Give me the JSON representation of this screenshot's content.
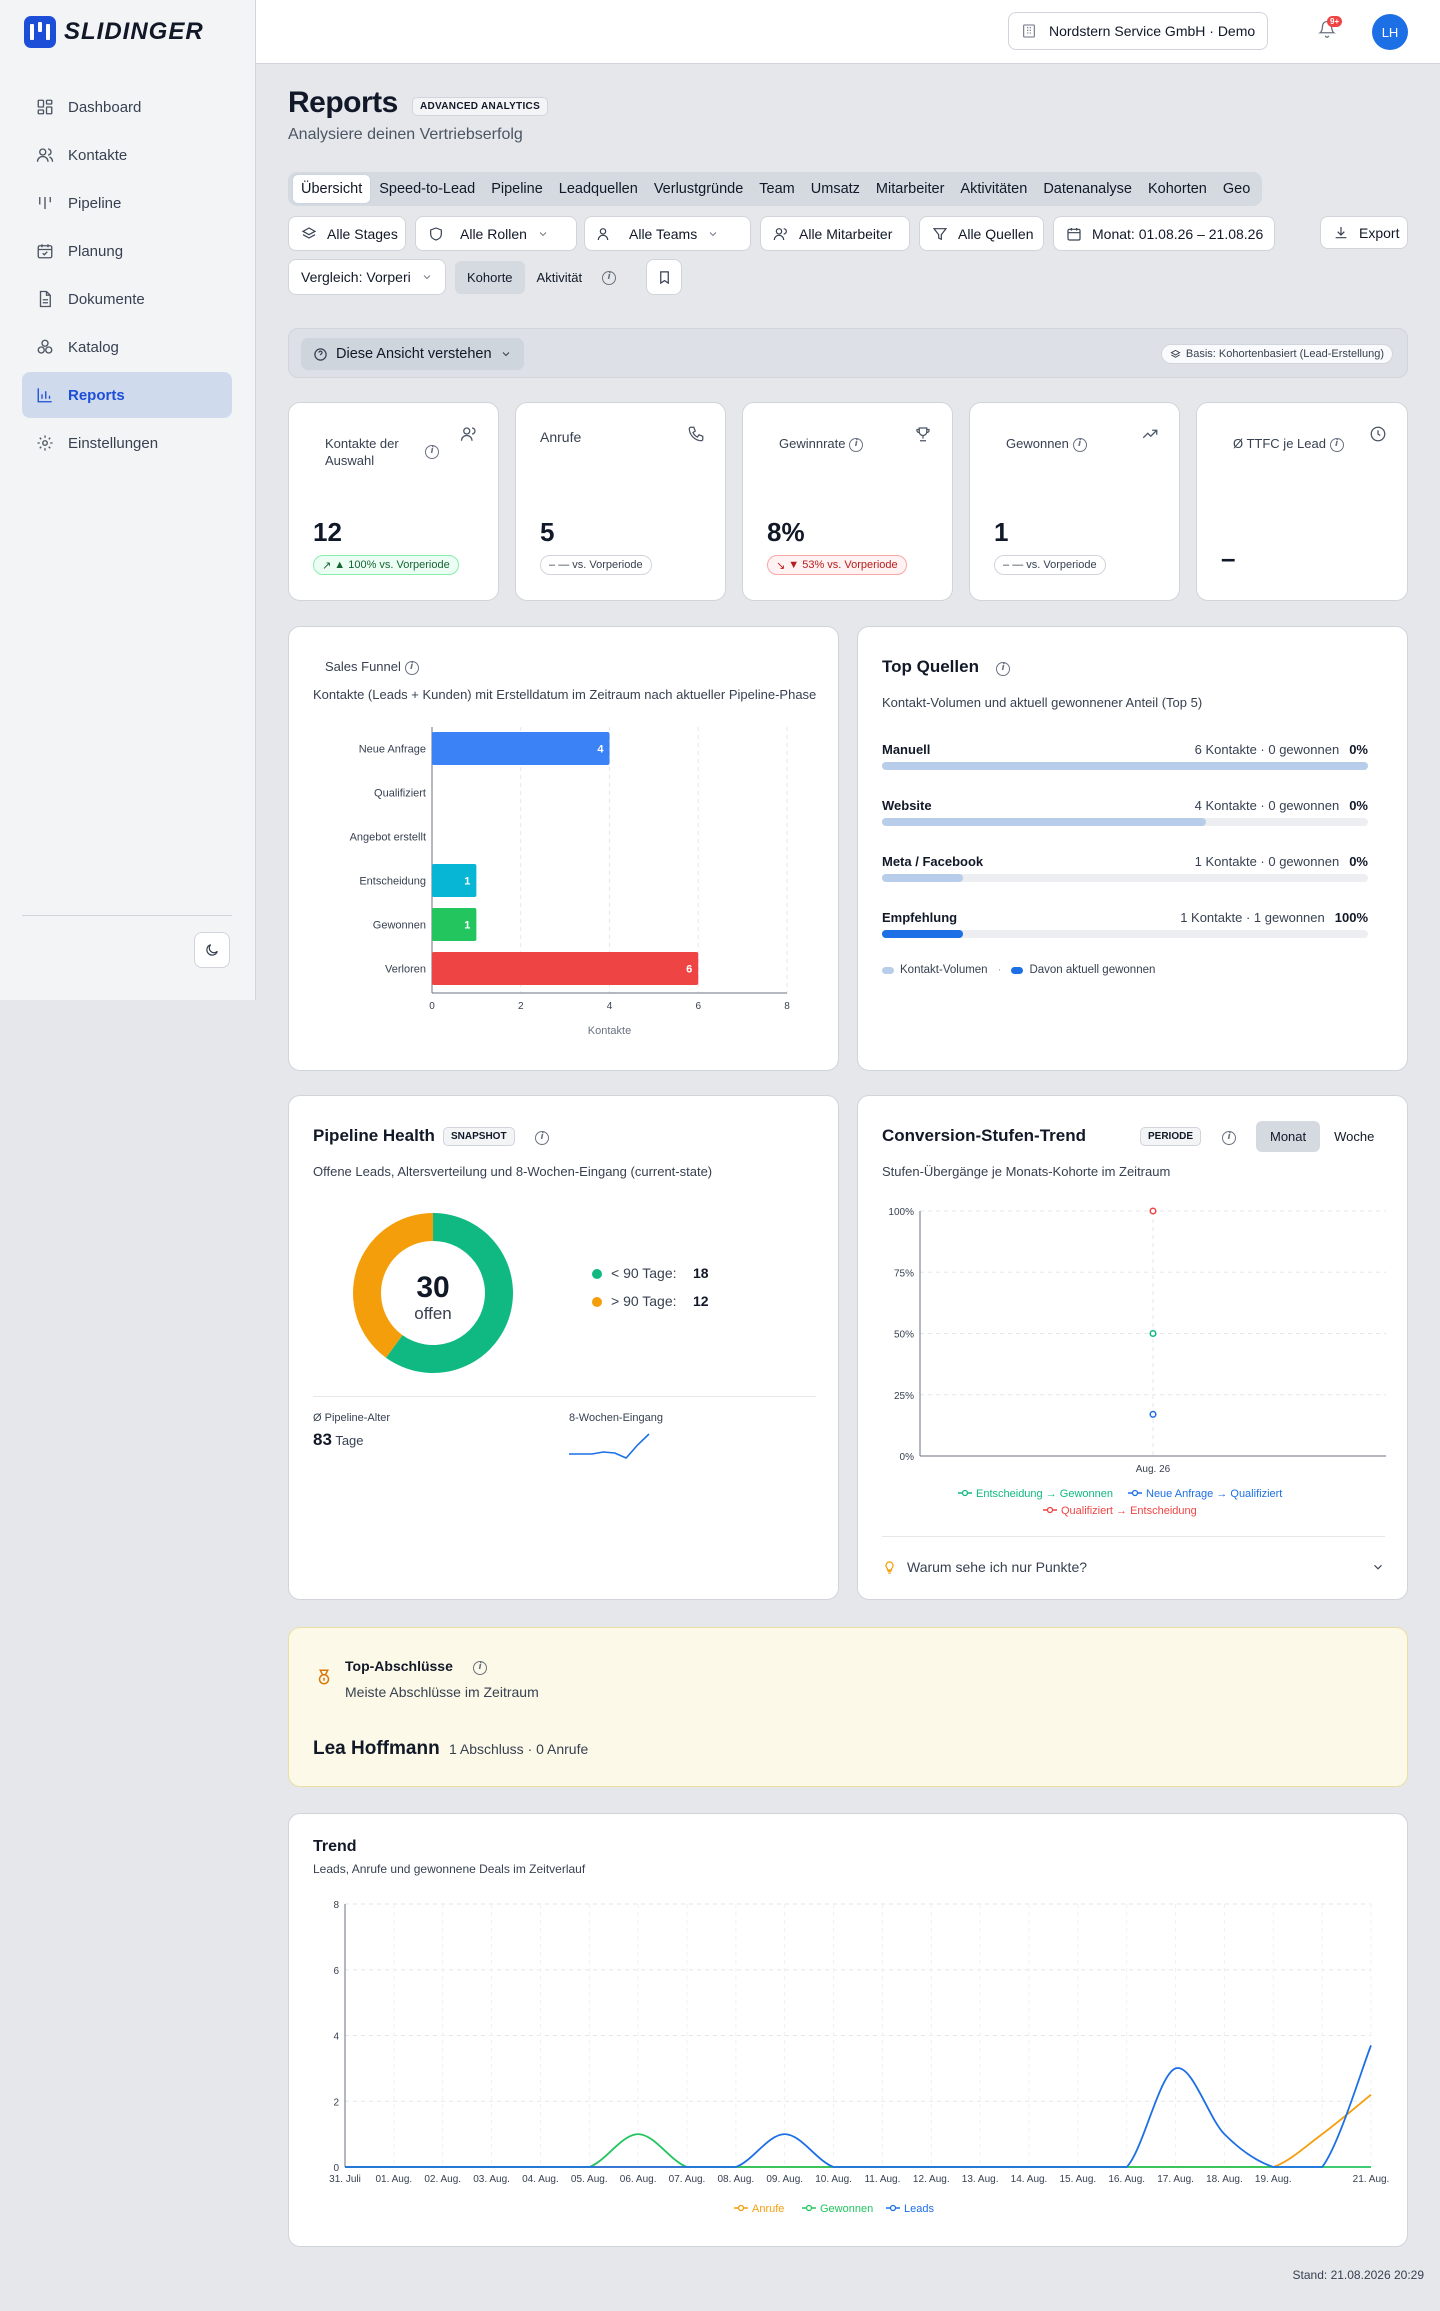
{
  "brand": {
    "name": "SLIDINGER"
  },
  "sidebar": {
    "items": [
      {
        "label": "Dashboard",
        "icon": "grid-icon",
        "active": false
      },
      {
        "label": "Kontakte",
        "icon": "users-icon",
        "active": false
      },
      {
        "label": "Pipeline",
        "icon": "columns-icon",
        "active": false
      },
      {
        "label": "Planung",
        "icon": "calendar-icon",
        "active": false
      },
      {
        "label": "Dokumente",
        "icon": "document-icon",
        "active": false
      },
      {
        "label": "Katalog",
        "icon": "boxes-icon",
        "active": false
      },
      {
        "label": "Reports",
        "icon": "bar-chart-icon",
        "active": true
      },
      {
        "label": "Einstellungen",
        "icon": "gear-icon",
        "active": false
      }
    ]
  },
  "topbar": {
    "org": "Nordstern Service GmbH · Demo",
    "notifications": "9+",
    "user_initials": "LH"
  },
  "page": {
    "title": "Reports",
    "badge": "ADVANCED ANALYTICS",
    "subtitle": "Analysiere deinen Vertriebserfolg"
  },
  "tabs": [
    "Übersicht",
    "Speed-to-Lead",
    "Pipeline",
    "Leadquellen",
    "Verlustgründe",
    "Team",
    "Umsatz",
    "Mitarbeiter",
    "Aktivitäten",
    "Datenanalyse",
    "Kohorten",
    "Geo"
  ],
  "filters": {
    "stages": "Alle Stages",
    "roles": "Alle Rollen",
    "teams": "Alle Teams",
    "employees": "Alle Mitarbeiter",
    "sources": "Alle Quellen",
    "period": "Monat: 01.08.26 – 21.08.26",
    "export": "Export",
    "compare": "Vergleich: Vorperiode",
    "mode_cohort": "Kohorte",
    "mode_activity": "Aktivität"
  },
  "understand": {
    "button": "Diese Ansicht verstehen",
    "basis": "Basis: Kohortenbasiert (Lead-Erstellung)"
  },
  "kpis": [
    {
      "label": "Kontakte der Auswahl",
      "value": "12",
      "delta": "▲ 100% vs. Vorperiode",
      "trend": "up",
      "icon": "users-icon"
    },
    {
      "label": "Anrufe",
      "value": "5",
      "delta": "— vs. Vorperiode",
      "trend": "flat",
      "icon": "phone-icon"
    },
    {
      "label": "Gewinnrate",
      "value": "8%",
      "delta": "▼ 53% vs. Vorperiode",
      "trend": "down",
      "icon": "trophy-icon"
    },
    {
      "label": "Gewonnen",
      "value": "1",
      "delta": "— vs. Vorperiode",
      "trend": "flat",
      "icon": "trending-up-icon"
    },
    {
      "label": "Ø TTFC je Lead",
      "value": "–",
      "delta": "",
      "trend": "none",
      "icon": "clock-icon"
    }
  ],
  "funnel": {
    "title": "Sales Funnel",
    "subtitle": "Kontakte (Leads + Kunden) mit Erstelldatum im Zeitraum nach aktueller Pipeline-Phase",
    "chart_data": {
      "type": "bar",
      "orientation": "horizontal",
      "categories": [
        "Neue Anfrage",
        "Qualifiziert",
        "Angebot erstellt",
        "Entscheidung",
        "Gewonnen",
        "Verloren"
      ],
      "values": [
        4,
        0,
        0,
        1,
        1,
        6
      ],
      "colors": [
        "#3b82f6",
        "#3b82f6",
        "#3b82f6",
        "#06b6d4",
        "#22c55e",
        "#ef4444"
      ],
      "xlabel": "Kontakte",
      "xlim": [
        0,
        8
      ],
      "xticks": [
        0,
        2,
        4,
        6,
        8
      ]
    }
  },
  "sources": {
    "title": "Top Quellen",
    "subtitle": "Kontakt-Volumen und aktuell gewonnener Anteil (Top 5)",
    "rows": [
      {
        "name": "Manuell",
        "meta": "6 Kontakte · 0 gewonnen",
        "pct": "0%",
        "volume": 1.0,
        "won": 0.0
      },
      {
        "name": "Website",
        "meta": "4 Kontakte · 0 gewonnen",
        "pct": "0%",
        "volume": 0.667,
        "won": 0.0
      },
      {
        "name": "Meta / Facebook",
        "meta": "1 Kontakte · 0 gewonnen",
        "pct": "0%",
        "volume": 0.167,
        "won": 0.0
      },
      {
        "name": "Empfehlung",
        "meta": "1 Kontakte · 1 gewonnen",
        "pct": "100%",
        "volume": 0.167,
        "won": 0.167
      }
    ],
    "legend_volume": "Kontakt-Volumen",
    "legend_won": "Davon aktuell gewonnen",
    "colors": {
      "volume": "#b7cdea",
      "won": "#1d6fe6"
    }
  },
  "health": {
    "title": "Pipeline Health",
    "badge": "SNAPSHOT",
    "subtitle": "Offene Leads, Altersverteilung und 8-Wochen-Eingang (current-state)",
    "total": "30",
    "total_label": "offen",
    "chart_data": {
      "type": "pie",
      "donut": true,
      "segments": [
        {
          "label": "< 90 Tage:",
          "value": 18,
          "color": "#10b981"
        },
        {
          "label": "> 90 Tage:",
          "value": 12,
          "color": "#f59e0b"
        }
      ]
    },
    "age_label": "Ø Pipeline-Alter",
    "age_value": "83",
    "age_unit": "Tage",
    "intake_label": "8-Wochen-Eingang",
    "intake_data": [
      1,
      1,
      1,
      1.2,
      1.1,
      0.6,
      1.9,
      3
    ]
  },
  "conversion": {
    "title": "Conversion-Stufen-Trend",
    "badge": "PERIODE",
    "toggle": [
      "Monat",
      "Woche"
    ],
    "subtitle": "Stufen-Übergänge je Monats-Kohorte im Zeitraum",
    "chart_data": {
      "type": "scatter",
      "x": [
        "Aug. 26"
      ],
      "ylim": [
        0,
        100
      ],
      "yticks": [
        "0%",
        "25%",
        "50%",
        "75%",
        "100%"
      ],
      "series": [
        {
          "name": "Entscheidung → Gewonnen",
          "values": [
            50
          ],
          "color": "#10b981"
        },
        {
          "name": "Neue Anfrage → Qualifiziert",
          "values": [
            17
          ],
          "color": "#1d6fe6"
        },
        {
          "name": "Qualifiziert → Entscheidung",
          "values": [
            100
          ],
          "color": "#ef4444"
        }
      ]
    },
    "faq": "Warum sehe ich nur Punkte?"
  },
  "top_deals": {
    "title": "Top-Abschlüsse",
    "subtitle": "Meiste Abschlüsse im Zeitraum",
    "winner_name": "Lea Hoffmann",
    "winner_meta": "1 Abschluss · 0 Anrufe"
  },
  "trend": {
    "title": "Trend",
    "subtitle": "Leads, Anrufe und gewonnene Deals im Zeitverlauf",
    "chart_data": {
      "type": "line",
      "x": [
        "31. Juli",
        "01. Aug.",
        "02. Aug.",
        "03. Aug.",
        "04. Aug.",
        "05. Aug.",
        "06. Aug.",
        "07. Aug.",
        "08. Aug.",
        "09. Aug.",
        "10. Aug.",
        "11. Aug.",
        "12. Aug.",
        "13. Aug.",
        "14. Aug.",
        "15. Aug.",
        "16. Aug.",
        "17. Aug.",
        "18. Aug.",
        "19. Aug.",
        "20. Aug.",
        "21. Aug."
      ],
      "xticks_shown": [
        "31. Juli",
        "01. Aug.",
        "02. Aug.",
        "03. Aug.",
        "04. Aug.",
        "05. Aug.",
        "06. Aug.",
        "07. Aug.",
        "08. Aug.",
        "09. Aug.",
        "10. Aug.",
        "11. Aug.",
        "12. Aug.",
        "13. Aug.",
        "14. Aug.",
        "15. Aug.",
        "16. Aug.",
        "17. Aug.",
        "18. Aug.",
        "19. Aug.",
        "21. Aug."
      ],
      "ylim": [
        0,
        8
      ],
      "yticks": [
        0,
        2,
        4,
        6,
        8
      ],
      "series": [
        {
          "name": "Anrufe",
          "color": "#f59e0b",
          "values": [
            0,
            0,
            0,
            0,
            0,
            0,
            0,
            0,
            0,
            0,
            0,
            0,
            0,
            0,
            0,
            0,
            0,
            0,
            0,
            0,
            1,
            2.2
          ]
        },
        {
          "name": "Gewonnen",
          "color": "#22c55e",
          "values": [
            0,
            0,
            0,
            0,
            0,
            0,
            1,
            0,
            0,
            0,
            0,
            0,
            0,
            0,
            0,
            0,
            0,
            0,
            0,
            0,
            0,
            0
          ]
        },
        {
          "name": "Leads",
          "color": "#1d6fe6",
          "values": [
            0,
            0,
            0,
            0,
            0,
            0,
            0,
            0,
            0,
            1,
            0,
            0,
            0,
            0,
            0,
            0,
            0,
            3,
            1,
            0,
            0,
            3.7
          ]
        }
      ]
    }
  },
  "footer": {
    "stand": "Stand: 21.08.2026 20:29"
  }
}
